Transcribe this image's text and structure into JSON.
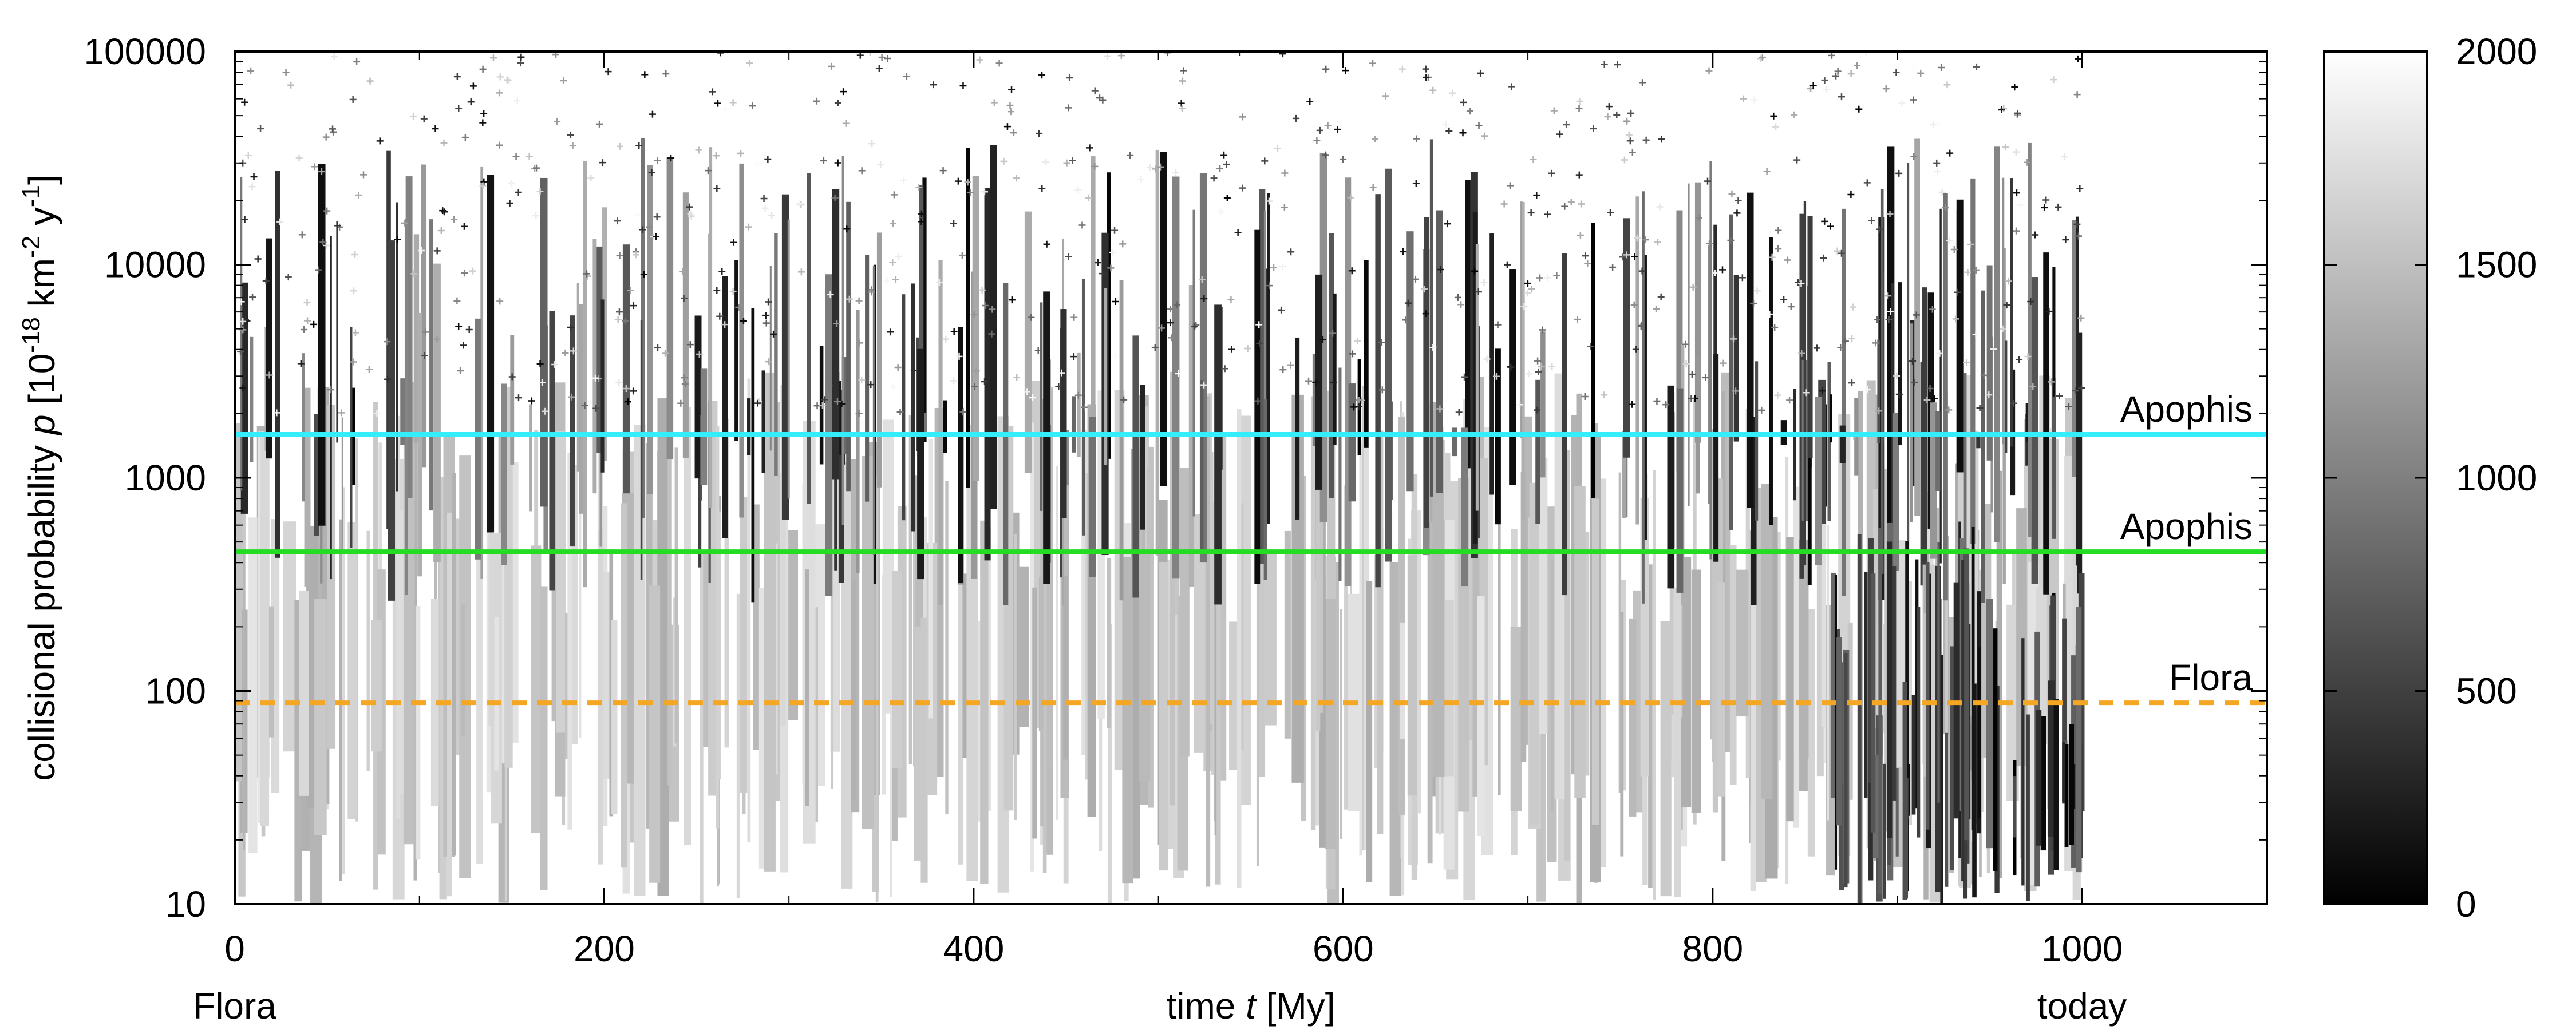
{
  "chart_data": {
    "type": "scatter",
    "xlabel_prefix": "time ",
    "xlabel_var": "t",
    "xlabel_unit": " [My]",
    "ylabel_prefix": "collisional probability ",
    "ylabel_var": "p",
    "ylabel_unit_open": " [10",
    "ylabel_exp1": "-18",
    "ylabel_mid": " km",
    "ylabel_exp2": "-2",
    "ylabel_mid2": " y",
    "ylabel_exp3": "-1",
    "ylabel_close": "]",
    "x_axis": {
      "min": 0,
      "max": 1100,
      "ticks": [
        0,
        200,
        400,
        600,
        800,
        1000
      ],
      "tick_labels": [
        "0",
        "200",
        "400",
        "600",
        "800",
        "1000"
      ]
    },
    "y_axis": {
      "scale": "log",
      "min": 10,
      "max": 100000,
      "ticks": [
        10,
        100,
        1000,
        10000,
        100000
      ],
      "tick_labels": [
        "10",
        "100",
        "1000",
        "10000",
        "100000"
      ]
    },
    "x_endpoints": {
      "left": "Flora",
      "right": "today"
    },
    "colorbar": {
      "min": 0,
      "max": 2000,
      "ticks": [
        0,
        500,
        1000,
        1500,
        2000
      ],
      "tick_labels": [
        "0",
        "500",
        "1000",
        "1500",
        "2000"
      ],
      "colormap": "grayscale black-to-white"
    },
    "reference_lines": [
      {
        "label": "Apophis",
        "value": 1600,
        "color": "#33eeff",
        "style": "solid"
      },
      {
        "label": "Apophis",
        "value": 450,
        "color": "#22dd22",
        "style": "solid"
      },
      {
        "label": "Flora",
        "value": 88,
        "color": "#f5a623",
        "style": "dashed"
      }
    ],
    "data_extent_x": [
      0,
      1000
    ],
    "point_marker": "+",
    "grid": false,
    "legend": "labels placed on right end of each reference line"
  }
}
